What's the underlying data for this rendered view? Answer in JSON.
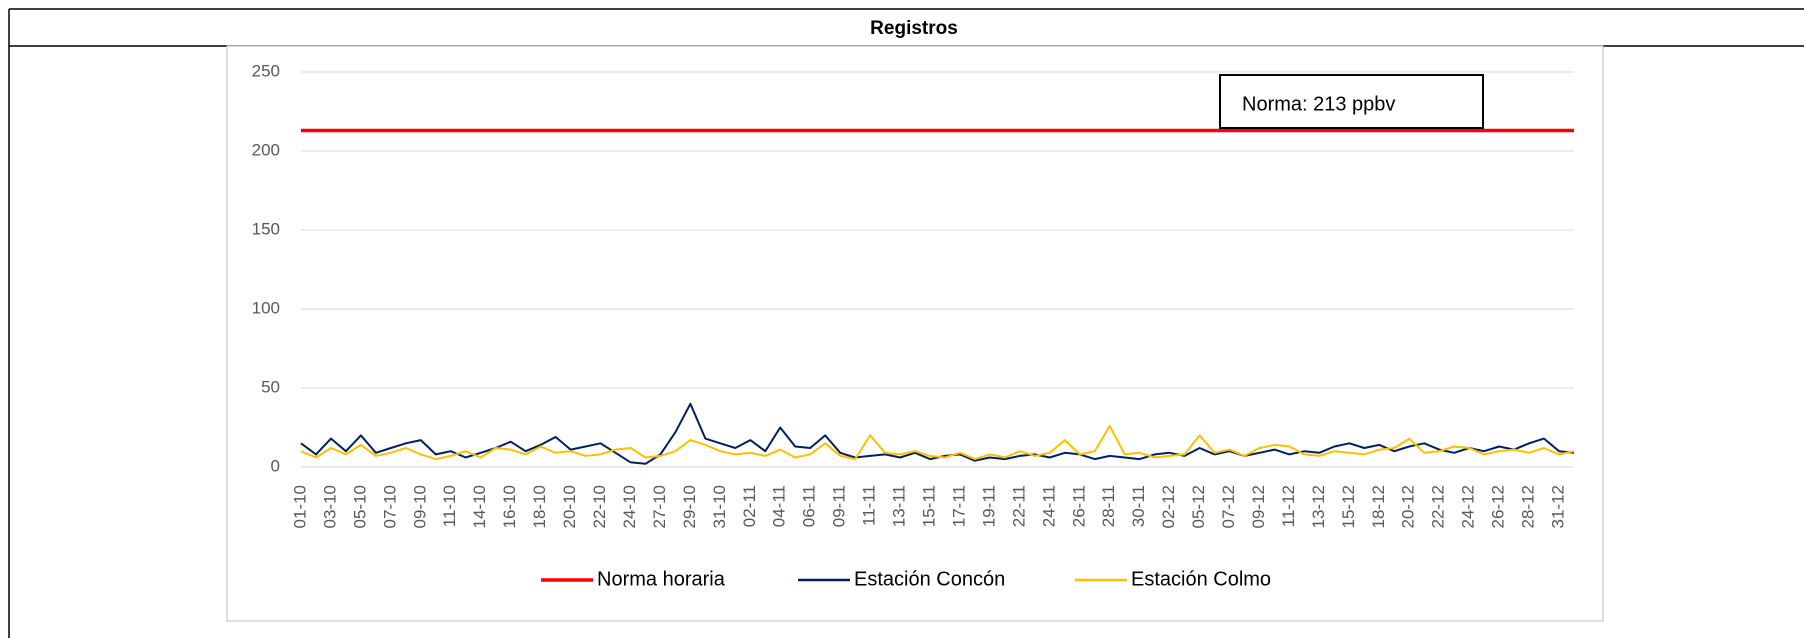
{
  "header": {
    "title": "Registros"
  },
  "chart_data": {
    "type": "line",
    "annotation": "Norma: 213 ppbv",
    "categories": [
      "01-10",
      null,
      "03-10",
      null,
      "05-10",
      null,
      "07-10",
      null,
      "09-10",
      null,
      "11-10",
      null,
      "14-10",
      null,
      "16-10",
      null,
      "18-10",
      null,
      "20-10",
      null,
      "22-10",
      null,
      "24-10",
      null,
      "27-10",
      null,
      "29-10",
      null,
      "31-10",
      null,
      "02-11",
      null,
      "04-11",
      null,
      "06-11",
      null,
      "09-11",
      null,
      "11-11",
      null,
      "13-11",
      null,
      "15-11",
      null,
      "17-11",
      null,
      "19-11",
      null,
      "22-11",
      null,
      "24-11",
      null,
      "26-11",
      null,
      "28-11",
      null,
      "30-11",
      null,
      "02-12",
      null,
      "05-12",
      null,
      "07-12",
      null,
      "09-12",
      null,
      "11-12",
      null,
      "13-12",
      null,
      "15-12",
      null,
      "18-12",
      null,
      "20-12",
      null,
      "22-12",
      null,
      "24-12",
      null,
      "26-12",
      null,
      "28-12",
      null,
      "31-12",
      null
    ],
    "series": [
      {
        "name": "Norma horaria",
        "color": "#ff0000",
        "values": [
          213,
          213,
          213,
          213,
          213,
          213,
          213,
          213,
          213,
          213,
          213,
          213,
          213,
          213,
          213,
          213,
          213,
          213,
          213,
          213,
          213,
          213,
          213,
          213,
          213,
          213,
          213,
          213,
          213,
          213,
          213,
          213,
          213,
          213,
          213,
          213,
          213,
          213,
          213,
          213,
          213,
          213,
          213,
          213,
          213,
          213,
          213,
          213,
          213,
          213,
          213,
          213,
          213,
          213,
          213,
          213,
          213,
          213,
          213,
          213,
          213,
          213,
          213,
          213,
          213,
          213,
          213,
          213,
          213,
          213,
          213,
          213,
          213,
          213,
          213,
          213,
          213,
          213,
          213,
          213,
          213,
          213,
          213,
          213,
          213,
          213
        ]
      },
      {
        "name": "Estación Concón",
        "color": "#002060",
        "values": [
          15,
          8,
          18,
          10,
          20,
          9,
          12,
          15,
          17,
          8,
          10,
          6,
          9,
          12,
          16,
          10,
          14,
          19,
          11,
          13,
          15,
          9,
          3,
          2,
          8,
          22,
          40,
          18,
          15,
          12,
          17,
          10,
          25,
          13,
          12,
          20,
          9,
          6,
          7,
          8,
          6,
          9,
          5,
          7,
          8,
          4,
          6,
          5,
          7,
          8,
          6,
          9,
          8,
          5,
          7,
          6,
          5,
          8,
          9,
          7,
          12,
          8,
          10,
          7,
          9,
          11,
          8,
          10,
          9,
          13,
          15,
          12,
          14,
          10,
          13,
          15,
          11,
          9,
          12,
          10,
          13,
          11,
          15,
          18,
          10,
          9
        ]
      },
      {
        "name": "Estación Colmo",
        "color": "#ffc000",
        "values": [
          10,
          6,
          12,
          8,
          14,
          7,
          9,
          12,
          8,
          5,
          7,
          10,
          6,
          12,
          11,
          8,
          13,
          9,
          10,
          7,
          8,
          11,
          12,
          6,
          7,
          10,
          17,
          14,
          10,
          8,
          9,
          7,
          11,
          6,
          8,
          15,
          7,
          5,
          20,
          9,
          8,
          10,
          7,
          6,
          9,
          5,
          8,
          6,
          10,
          7,
          9,
          17,
          8,
          10,
          26,
          8,
          9,
          6,
          7,
          8,
          20,
          9,
          11,
          7,
          12,
          14,
          13,
          8,
          7,
          10,
          9,
          8,
          11,
          12,
          18,
          9,
          10,
          13,
          12,
          8,
          10,
          11,
          9,
          12,
          8,
          10
        ]
      }
    ],
    "ylim": [
      0,
      250
    ],
    "yticks": [
      0,
      50,
      100,
      150,
      200,
      250
    ],
    "grid": true,
    "legend": "bottom"
  }
}
